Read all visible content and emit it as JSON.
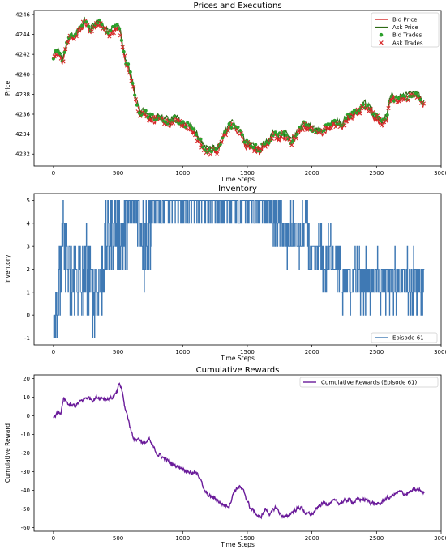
{
  "chart_data": [
    {
      "type": "line",
      "title": "Prices and Executions",
      "xlabel": "Time Steps",
      "ylabel": "Price",
      "xlim": [
        -150,
        3000
      ],
      "ylim": [
        4230.8,
        4246.4
      ],
      "xticks": [
        0,
        500,
        1000,
        1500,
        2000,
        2500,
        3000
      ],
      "yticks": [
        4232,
        4234,
        4236,
        4238,
        4240,
        4242,
        4244,
        4246
      ],
      "legend_position": "top-right",
      "series": [
        {
          "name": "Bid Price",
          "kind": "line",
          "color": "#d62728",
          "keypoints": [
            [
              0,
              4241.6
            ],
            [
              40,
              4242.2
            ],
            [
              70,
              4241.0
            ],
            [
              100,
              4242.6
            ],
            [
              130,
              4243.8
            ],
            [
              160,
              4243.5
            ],
            [
              200,
              4244.4
            ],
            [
              240,
              4245.2
            ],
            [
              280,
              4244.3
            ],
            [
              320,
              4244.9
            ],
            [
              360,
              4245.1
            ],
            [
              400,
              4244.3
            ],
            [
              430,
              4243.8
            ],
            [
              460,
              4244.3
            ],
            [
              500,
              4244.8
            ],
            [
              520,
              4243.8
            ],
            [
              545,
              4242.2
            ],
            [
              560,
              4241.0
            ],
            [
              580,
              4240.5
            ],
            [
              600,
              4239.5
            ],
            [
              620,
              4238.6
            ],
            [
              640,
              4237.0
            ],
            [
              660,
              4236.2
            ],
            [
              680,
              4235.8
            ],
            [
              700,
              4236.1
            ],
            [
              740,
              4235.6
            ],
            [
              780,
              4235.4
            ],
            [
              820,
              4235.6
            ],
            [
              860,
              4235.2
            ],
            [
              900,
              4235.0
            ],
            [
              940,
              4235.4
            ],
            [
              980,
              4235.0
            ],
            [
              1020,
              4234.8
            ],
            [
              1060,
              4234.6
            ],
            [
              1100,
              4233.8
            ],
            [
              1130,
              4233.2
            ],
            [
              1160,
              4232.6
            ],
            [
              1200,
              4232.0
            ],
            [
              1230,
              4232.3
            ],
            [
              1260,
              4232.1
            ],
            [
              1300,
              4233.0
            ],
            [
              1330,
              4234.0
            ],
            [
              1360,
              4234.6
            ],
            [
              1400,
              4234.7
            ],
            [
              1450,
              4234.0
            ],
            [
              1480,
              4233.1
            ],
            [
              1520,
              4232.7
            ],
            [
              1560,
              4232.5
            ],
            [
              1600,
              4232.3
            ],
            [
              1640,
              4232.9
            ],
            [
              1680,
              4233.3
            ],
            [
              1700,
              4233.9
            ],
            [
              1740,
              4233.6
            ],
            [
              1780,
              4233.9
            ],
            [
              1800,
              4233.6
            ],
            [
              1840,
              4233.0
            ],
            [
              1860,
              4233.4
            ],
            [
              1900,
              4234.3
            ],
            [
              1940,
              4234.8
            ],
            [
              1980,
              4234.6
            ],
            [
              2000,
              4234.4
            ],
            [
              2040,
              4234.2
            ],
            [
              2080,
              4234.0
            ],
            [
              2100,
              4234.6
            ],
            [
              2140,
              4234.5
            ],
            [
              2160,
              4234.8
            ],
            [
              2200,
              4235.0
            ],
            [
              2230,
              4234.6
            ],
            [
              2260,
              4235.2
            ],
            [
              2300,
              4235.8
            ],
            [
              2340,
              4236.0
            ],
            [
              2380,
              4236.4
            ],
            [
              2400,
              4236.8
            ],
            [
              2440,
              4236.5
            ],
            [
              2480,
              4235.8
            ],
            [
              2500,
              4235.6
            ],
            [
              2520,
              4235.4
            ],
            [
              2550,
              4235.0
            ],
            [
              2580,
              4235.6
            ],
            [
              2600,
              4237.0
            ],
            [
              2620,
              4237.4
            ],
            [
              2660,
              4237.4
            ],
            [
              2700,
              4237.6
            ],
            [
              2740,
              4237.5
            ],
            [
              2780,
              4237.8
            ],
            [
              2820,
              4237.6
            ],
            [
              2850,
              4237.2
            ],
            [
              2870,
              4236.9
            ]
          ]
        },
        {
          "name": "Ask Price",
          "kind": "line",
          "color": "#2d6a14"
        },
        {
          "name": "Bid Trades",
          "kind": "markers",
          "marker": "circle",
          "color": "#2ca02c"
        },
        {
          "name": "Ask Trades",
          "kind": "markers",
          "marker": "x",
          "color": "#d62728"
        }
      ]
    },
    {
      "type": "line",
      "title": "Inventory",
      "xlabel": "Time Steps",
      "ylabel": "Inventory",
      "xlim": [
        -150,
        3000
      ],
      "ylim": [
        -1.3,
        5.3
      ],
      "xticks": [
        0,
        500,
        1000,
        1500,
        2000,
        2500,
        3000
      ],
      "yticks": [
        -1,
        0,
        1,
        2,
        3,
        4,
        5
      ],
      "legend_position": "bottom-right",
      "series": [
        {
          "name": "Episode 61",
          "color": "#3f79b4",
          "segments": [
            [
              0,
              0
            ],
            [
              40,
              1
            ],
            [
              80,
              3
            ],
            [
              110,
              2
            ],
            [
              140,
              1
            ],
            [
              180,
              2
            ],
            [
              220,
              1
            ],
            [
              260,
              2
            ],
            [
              300,
              1
            ],
            [
              340,
              1
            ],
            [
              380,
              2
            ],
            [
              420,
              3
            ],
            [
              460,
              4
            ],
            [
              500,
              4
            ],
            [
              540,
              3
            ],
            [
              580,
              4
            ],
            [
              620,
              5
            ],
            [
              660,
              5
            ],
            [
              700,
              3
            ],
            [
              740,
              4
            ],
            [
              780,
              5
            ],
            [
              820,
              5
            ],
            [
              1000,
              5
            ],
            [
              1100,
              5
            ],
            [
              1200,
              5
            ],
            [
              1300,
              4
            ],
            [
              1400,
              5
            ],
            [
              1500,
              5
            ],
            [
              1620,
              4
            ],
            [
              1700,
              4
            ],
            [
              1760,
              4
            ],
            [
              1800,
              3
            ],
            [
              1860,
              4
            ],
            [
              1900,
              3
            ],
            [
              1960,
              4
            ],
            [
              2000,
              2
            ],
            [
              2060,
              3
            ],
            [
              2100,
              2
            ],
            [
              2160,
              3
            ],
            [
              2200,
              2
            ],
            [
              2240,
              1
            ],
            [
              2400,
              1
            ],
            [
              2500,
              1
            ],
            [
              2600,
              1
            ],
            [
              2700,
              2
            ],
            [
              2800,
              2
            ],
            [
              2870,
              1
            ]
          ]
        }
      ]
    },
    {
      "type": "line",
      "title": "Cumulative Rewards",
      "xlabel": "Time Steps",
      "ylabel": "Cumulative Reward",
      "xlim": [
        -150,
        3000
      ],
      "ylim": [
        -62,
        22
      ],
      "xticks": [
        0,
        500,
        1000,
        1500,
        2000,
        2500,
        3000
      ],
      "yticks": [
        -60,
        -50,
        -40,
        -30,
        -20,
        -10,
        0,
        10,
        20
      ],
      "legend_position": "top-right",
      "series": [
        {
          "name": "Cumulative Rewards (Episode 61)",
          "color": "#6a1b9a",
          "keypoints": [
            [
              0,
              0
            ],
            [
              30,
              1
            ],
            [
              60,
              2
            ],
            [
              80,
              9
            ],
            [
              100,
              7
            ],
            [
              140,
              5
            ],
            [
              180,
              6
            ],
            [
              220,
              8
            ],
            [
              260,
              10
            ],
            [
              300,
              9
            ],
            [
              340,
              10
            ],
            [
              380,
              10
            ],
            [
              420,
              9
            ],
            [
              460,
              10
            ],
            [
              490,
              12
            ],
            [
              510,
              17
            ],
            [
              530,
              14
            ],
            [
              550,
              5
            ],
            [
              580,
              -2
            ],
            [
              600,
              -8
            ],
            [
              630,
              -13
            ],
            [
              660,
              -12
            ],
            [
              700,
              -15
            ],
            [
              740,
              -13
            ],
            [
              770,
              -17
            ],
            [
              800,
              -20
            ],
            [
              840,
              -22
            ],
            [
              880,
              -24
            ],
            [
              920,
              -26
            ],
            [
              960,
              -27
            ],
            [
              1000,
              -28
            ],
            [
              1050,
              -30
            ],
            [
              1100,
              -31
            ],
            [
              1140,
              -33
            ],
            [
              1160,
              -40
            ],
            [
              1200,
              -43
            ],
            [
              1240,
              -44
            ],
            [
              1280,
              -46
            ],
            [
              1320,
              -48
            ],
            [
              1360,
              -48
            ],
            [
              1400,
              -40
            ],
            [
              1440,
              -38
            ],
            [
              1480,
              -42
            ],
            [
              1520,
              -49
            ],
            [
              1560,
              -52
            ],
            [
              1600,
              -55
            ],
            [
              1640,
              -50
            ],
            [
              1680,
              -53
            ],
            [
              1720,
              -49
            ],
            [
              1760,
              -53
            ],
            [
              1800,
              -55
            ],
            [
              1840,
              -52
            ],
            [
              1880,
              -50
            ],
            [
              1920,
              -49
            ],
            [
              1960,
              -53
            ],
            [
              2000,
              -53
            ],
            [
              2040,
              -50
            ],
            [
              2080,
              -47
            ],
            [
              2120,
              -47
            ],
            [
              2160,
              -46
            ],
            [
              2200,
              -47
            ],
            [
              2240,
              -46
            ],
            [
              2280,
              -45
            ],
            [
              2320,
              -46
            ],
            [
              2360,
              -45
            ],
            [
              2400,
              -45
            ],
            [
              2440,
              -46
            ],
            [
              2480,
              -47
            ],
            [
              2520,
              -48
            ],
            [
              2560,
              -45
            ],
            [
              2600,
              -44
            ],
            [
              2640,
              -42
            ],
            [
              2680,
              -41
            ],
            [
              2720,
              -42
            ],
            [
              2760,
              -41
            ],
            [
              2800,
              -40
            ],
            [
              2840,
              -40
            ],
            [
              2870,
              -42
            ]
          ]
        }
      ]
    }
  ]
}
